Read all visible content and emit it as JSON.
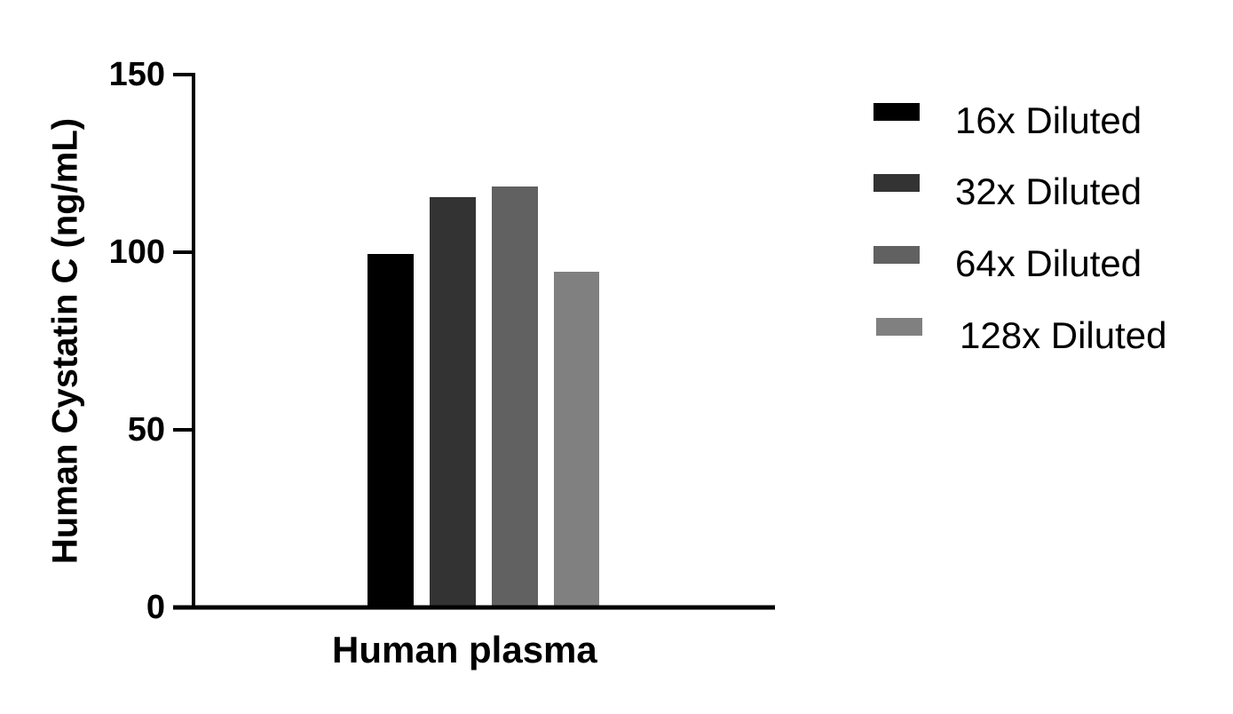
{
  "chart_data": {
    "type": "bar",
    "title": "",
    "xlabel": "Human plasma",
    "ylabel": "Human Cystatin C (ng/mL)",
    "categories": [
      "Human plasma"
    ],
    "series": [
      {
        "name": "16x Diluted",
        "values": [
          99.5
        ],
        "color": "#000000"
      },
      {
        "name": "32x Diluted",
        "values": [
          115.5
        ],
        "color": "#333333"
      },
      {
        "name": "64x Diluted",
        "values": [
          118.5
        ],
        "color": "#616161"
      },
      {
        "name": "128x Diluted",
        "values": [
          94.5
        ],
        "color": "#808080"
      }
    ],
    "ylim": [
      0,
      150
    ],
    "yticks": [
      0,
      50,
      100,
      150
    ],
    "grid": false,
    "legend_position": "right"
  },
  "axes": {
    "ylabel": "Human Cystatin C (ng/mL)",
    "xlabel": "Human plasma",
    "yticks": [
      "0",
      "50",
      "100",
      "150"
    ]
  },
  "legend": [
    {
      "label": "16x Diluted",
      "color": "#000000"
    },
    {
      "label": "32x Diluted",
      "color": "#333333"
    },
    {
      "label": "64x Diluted",
      "color": "#616161"
    },
    {
      "label": "128x Diluted",
      "color": "#808080"
    }
  ]
}
